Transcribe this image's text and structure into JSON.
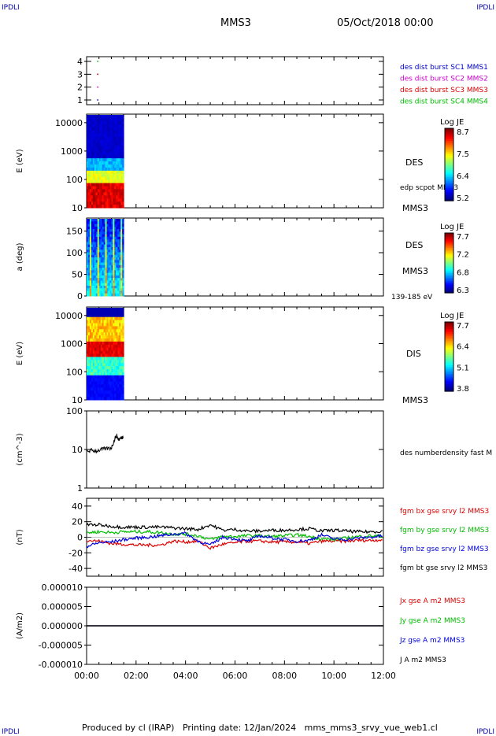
{
  "page": {
    "corner_label": "IPDLI",
    "title": "MMS3",
    "datetime": "05/Oct/2018 00:00",
    "footer": "Produced by cl (IRAP)   Printing date: 12/Jan/2024   mms_mms3_srvy_vue_web1.cl"
  },
  "colors": {
    "mms1": "#0000cc",
    "mms2": "#cc00cc",
    "mms3": "#dd0000",
    "mms4": "#00bb00",
    "bx": "#dd0000",
    "by": "#00bb00",
    "bz": "#0000dd",
    "bt": "#000000"
  },
  "chart_data": [
    {
      "type": "scatter",
      "panel": "burst",
      "xlim": [
        "00:00",
        "12:00"
      ],
      "yticks": [
        "4",
        "3",
        "2",
        "1"
      ],
      "legend": [
        "des dist burst SC1 MMS1",
        "des dist burst SC2 MMS2",
        "des dist burst SC3 MMS3",
        "des dist burst SC4 MMS4"
      ],
      "series": [
        {
          "name": "des dist burst SC1 MMS1",
          "y": 1,
          "x_hours": [
            0.45
          ]
        },
        {
          "name": "des dist burst SC2 MMS2",
          "y": 2,
          "x_hours": [
            0.45
          ]
        },
        {
          "name": "des dist burst SC3 MMS3",
          "y": 3,
          "x_hours": [
            0.45
          ]
        },
        {
          "name": "des dist burst SC4 MMS4",
          "y": 4,
          "x_hours": [
            0.45
          ]
        }
      ]
    },
    {
      "type": "heatmap",
      "panel": "des-energy",
      "ylabel": "E (eV)",
      "yscale": "log",
      "ylim": [
        10,
        20000
      ],
      "yticks": [
        "10000",
        "1000",
        "100",
        "10"
      ],
      "data_x_hours": [
        0.0,
        1.5
      ],
      "right_labels": [
        "DES",
        "edp scpot MMS3",
        "MMS3"
      ],
      "colorbar": {
        "label": "Log JE",
        "ticks": [
          "8.7",
          "7.5",
          "6.4",
          "5.2"
        ]
      }
    },
    {
      "type": "heatmap",
      "panel": "des-pitch",
      "ylabel": "a (deg)",
      "ylim": [
        0,
        180
      ],
      "yticks": [
        "150",
        "100",
        "50",
        "0"
      ],
      "data_x_hours": [
        0.0,
        1.5
      ],
      "right_labels": [
        "DES",
        "MMS3",
        "139-185 eV"
      ],
      "colorbar": {
        "label": "Log JE",
        "ticks": [
          "7.7",
          "7.2",
          "6.8",
          "6.3"
        ]
      }
    },
    {
      "type": "heatmap",
      "panel": "dis-energy",
      "ylabel": "E (eV)",
      "yscale": "log",
      "ylim": [
        10,
        20000
      ],
      "yticks": [
        "10000",
        "1000",
        "100",
        "10"
      ],
      "data_x_hours": [
        0.0,
        1.5
      ],
      "right_labels": [
        "DIS",
        "MMS3"
      ],
      "colorbar": {
        "label": "Log JE",
        "ticks": [
          "7.7",
          "6.4",
          "5.1",
          "3.8"
        ]
      }
    },
    {
      "type": "line",
      "panel": "density",
      "ylabel": "(cm^-3)",
      "yscale": "log",
      "ylim": [
        1,
        100
      ],
      "yticks": [
        "100",
        "10",
        "1"
      ],
      "legend": [
        "des numberdensity fast M"
      ],
      "series": [
        {
          "name": "des numberdensity fast M",
          "x_hours": [
            0.0,
            0.2,
            0.4,
            0.6,
            0.8,
            1.0,
            1.1,
            1.2,
            1.3,
            1.4,
            1.5
          ],
          "values": [
            9,
            9.5,
            9.2,
            10,
            10.5,
            11,
            16,
            23,
            18,
            20,
            22
          ]
        }
      ]
    },
    {
      "type": "line",
      "panel": "magnetic-field",
      "ylabel": "(nT)",
      "ylim": [
        -50,
        50
      ],
      "yticks": [
        "40",
        "20",
        "0",
        "-20",
        "-40"
      ],
      "legend": [
        "fgm bx gse srvy l2 MMS3",
        "fgm by gse srvy l2 MMS3",
        "fgm bz gse srvy l2 MMS3",
        "fgm bt gse srvy l2 MMS3"
      ],
      "x_hours": [
        0,
        0.5,
        1,
        1.5,
        2,
        2.5,
        3,
        3.5,
        4,
        4.5,
        5,
        5.5,
        6,
        6.5,
        7,
        7.5,
        8,
        8.5,
        9,
        9.5,
        10,
        10.5,
        11,
        11.5,
        12
      ],
      "series": [
        {
          "name": "fgm bx gse srvy l2 MMS3",
          "values": [
            -4,
            -5,
            -8,
            -9,
            -10,
            -10,
            -10,
            -5,
            -6,
            -5,
            -14,
            -9,
            -7,
            -5,
            -5,
            -6,
            -6,
            -6,
            -8,
            -5,
            -5,
            -5,
            -4,
            -4,
            -3
          ]
        },
        {
          "name": "fgm by gse srvy l2 MMS3",
          "values": [
            6,
            7,
            6,
            7,
            7,
            7,
            6,
            4,
            4,
            2,
            -3,
            1,
            1,
            2,
            2,
            1,
            2,
            3,
            1,
            -2,
            -3,
            -1,
            1,
            2,
            1
          ]
        },
        {
          "name": "fgm bz gse srvy l2 MMS3",
          "values": [
            -12,
            -7,
            -6,
            -3,
            -1,
            0,
            2,
            4,
            5,
            -5,
            -10,
            0,
            -2,
            -5,
            2,
            -1,
            -3,
            -5,
            -4,
            3,
            -2,
            -3,
            -1,
            0,
            2
          ]
        },
        {
          "name": "fgm bt gse srvy l2 MMS3",
          "values": [
            16,
            16,
            14,
            13,
            13,
            13,
            13,
            12,
            11,
            10,
            16,
            9,
            10,
            8,
            8,
            9,
            9,
            10,
            11,
            8,
            9,
            8,
            7,
            7,
            8
          ]
        }
      ]
    },
    {
      "type": "line",
      "panel": "current-density",
      "ylabel": "(A/m2)",
      "ylim": [
        -1e-05,
        1e-05
      ],
      "yticks": [
        "0.000010",
        "0.000005",
        "0.000000",
        "-0.000005",
        "-0.000010"
      ],
      "xticks": [
        "00:00",
        "02:00",
        "04:00",
        "06:00",
        "08:00",
        "10:00",
        "12:00"
      ],
      "legend": [
        "Jx gse A m2 MMS3",
        "Jy gse A m2 MMS3",
        "Jz gse A m2 MMS3",
        "J A m2 MMS3"
      ],
      "series": [
        {
          "name": "Jx gse A m2 MMS3",
          "values": [
            0,
            0
          ]
        },
        {
          "name": "Jy gse A m2 MMS3",
          "values": [
            0,
            0
          ]
        },
        {
          "name": "Jz gse A m2 MMS3",
          "values": [
            0,
            0
          ]
        },
        {
          "name": "J A m2 MMS3",
          "values": [
            0,
            0
          ]
        }
      ]
    }
  ]
}
